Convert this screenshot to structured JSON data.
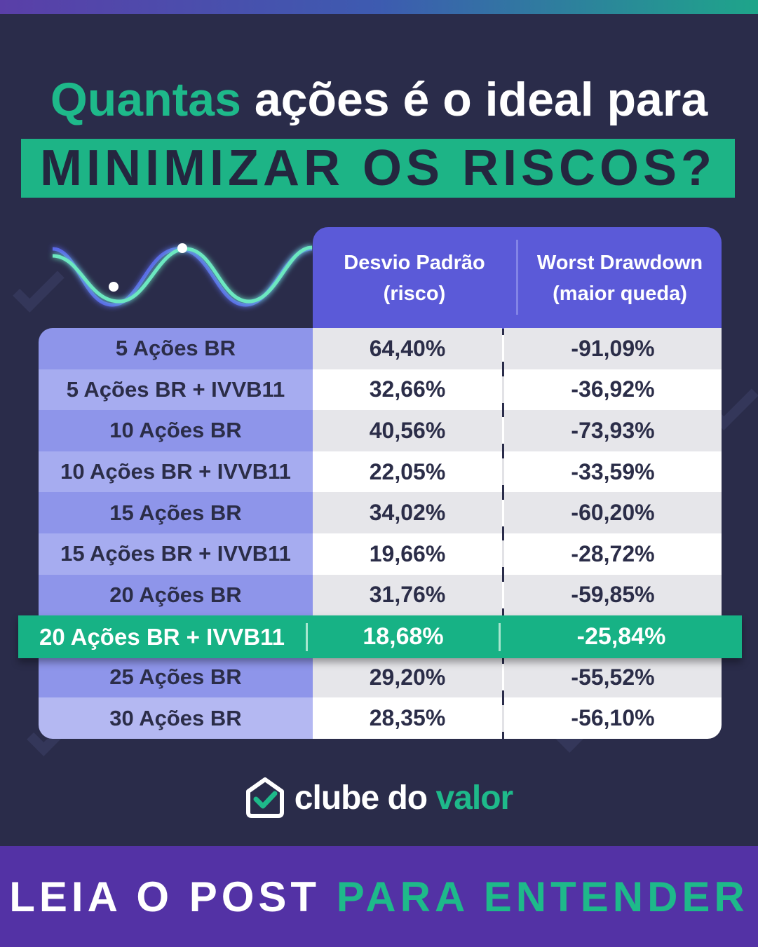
{
  "title": {
    "accent_word": "Quantas",
    "rest": " ações é o ideal para",
    "banner": "MINIMIZAR OS RISCOS?"
  },
  "table": {
    "headers": {
      "col1_line1": "Desvio Padrão",
      "col1_line2": "(risco)",
      "col2_line1": "Worst Drawdown",
      "col2_line2": "(maior queda)"
    },
    "rows": [
      {
        "label": "5 Ações BR",
        "std": "64,40%",
        "dd": "-91,09%"
      },
      {
        "label": "5 Ações BR + IVVB11",
        "std": "32,66%",
        "dd": "-36,92%"
      },
      {
        "label": "10 Ações BR",
        "std": "40,56%",
        "dd": "-73,93%"
      },
      {
        "label": "10 Ações BR + IVVB11",
        "std": "22,05%",
        "dd": "-33,59%"
      },
      {
        "label": "15 Ações BR",
        "std": "34,02%",
        "dd": "-60,20%"
      },
      {
        "label": "15 Ações BR + IVVB11",
        "std": "19,66%",
        "dd": "-28,72%"
      },
      {
        "label": "20 Ações BR",
        "std": "31,76%",
        "dd": "-59,85%"
      },
      {
        "label": "20 Ações BR + IVVB11",
        "std": "18,68%",
        "dd": "-25,84%"
      },
      {
        "label": "25 Ações BR",
        "std": "29,20%",
        "dd": "-55,52%"
      },
      {
        "label": "30 Ações BR",
        "std": "28,35%",
        "dd": "-56,10%"
      }
    ]
  },
  "brand": {
    "logo_icon": "house-check-icon",
    "part1": "clube do ",
    "part2": "valor"
  },
  "footer": {
    "part1": "LEIA O POST ",
    "part2": "PARA ENTENDER"
  },
  "colors": {
    "background": "#2a2c4a",
    "accent_green": "#1eb98a",
    "header_purple": "#5b5ad8",
    "footer_purple": "#5332a5"
  }
}
